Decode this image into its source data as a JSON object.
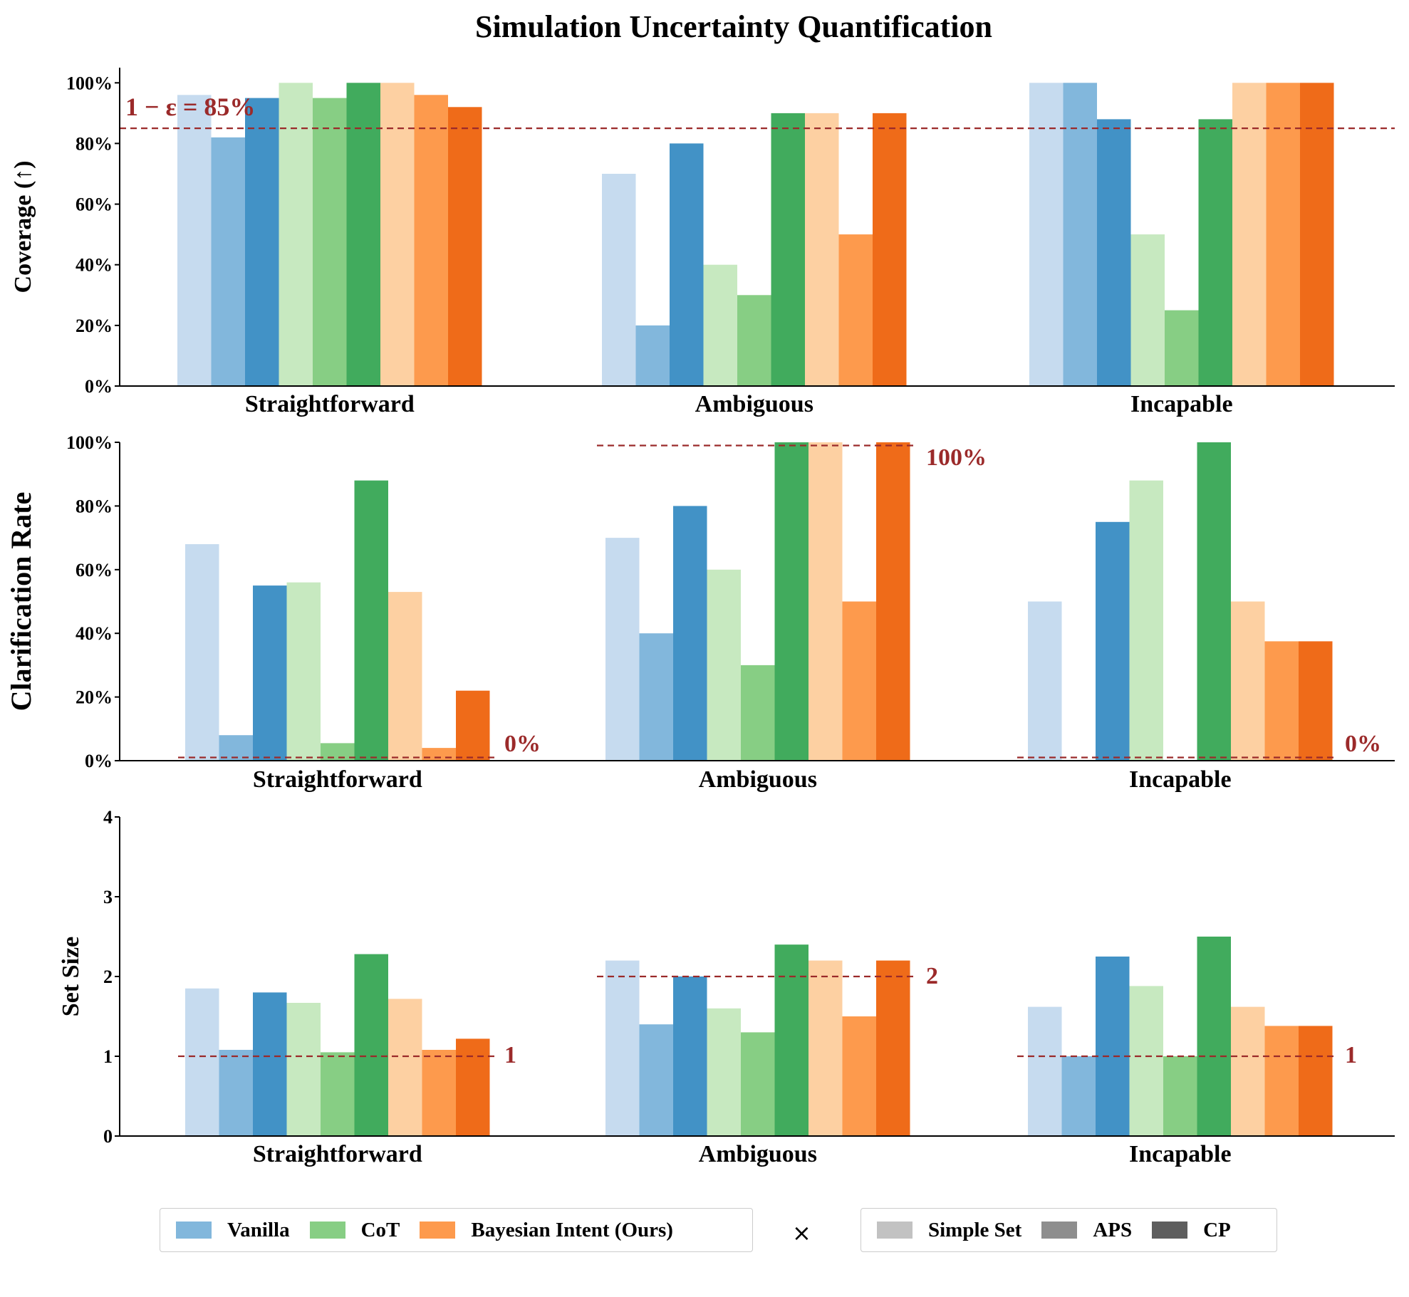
{
  "chart_data": {
    "title": "Simulation Uncertainty Quantification",
    "categories": [
      "Straightforward",
      "Ambiguous",
      "Incapable"
    ],
    "methods": [
      "Vanilla",
      "CoT",
      "Bayesian Intent (Ours)"
    ],
    "variants": [
      "Simple Set",
      "APS",
      "CP"
    ],
    "bar_order": [
      "Vanilla Simple Set",
      "Vanilla APS",
      "Vanilla CP",
      "CoT Simple Set",
      "CoT APS",
      "CoT CP",
      "Bayesian Simple Set",
      "Bayesian APS",
      "Bayesian CP"
    ],
    "colors": {
      "Vanilla": [
        "#c6dbef",
        "#82b7dc",
        "#4292c6"
      ],
      "CoT": [
        "#c7e9c0",
        "#87ce84",
        "#41ab5d"
      ],
      "Bayesian Intent (Ours)": [
        "#fdd0a2",
        "#fd9a4d",
        "#ef6b19"
      ],
      "reference": "#9b2a2a",
      "legend_methods": [
        "#82b7dc",
        "#87ce84",
        "#fd9a4d"
      ],
      "legend_variants": [
        "#c2c2c2",
        "#8e8e8e",
        "#5e5e5e"
      ]
    },
    "panels": [
      {
        "type": "bar",
        "ylabel": "Coverage (↑)",
        "ylim": [
          0,
          105
        ],
        "yticks": [
          0,
          20,
          40,
          60,
          80,
          100
        ],
        "ytick_labels": [
          "0%",
          "20%",
          "40%",
          "60%",
          "80%",
          "100%"
        ],
        "series": [
          {
            "category": "Straightforward",
            "values": [
              96,
              82,
              95,
              100,
              95,
              100,
              100,
              96,
              92
            ]
          },
          {
            "category": "Ambiguous",
            "values": [
              70,
              20,
              80,
              40,
              30,
              90,
              90,
              50,
              90
            ]
          },
          {
            "category": "Incapable",
            "values": [
              100,
              100,
              88,
              50,
              25,
              88,
              100,
              100,
              100
            ]
          }
        ],
        "reference_lines": [
          {
            "scope": "all",
            "value": 85,
            "label": "1 − ε = 85%"
          }
        ]
      },
      {
        "type": "bar",
        "ylabel": "Clarification Rate",
        "ylim": [
          0,
          100
        ],
        "yticks": [
          0,
          20,
          40,
          60,
          80,
          100
        ],
        "ytick_labels": [
          "0%",
          "20%",
          "40%",
          "60%",
          "80%",
          "100%"
        ],
        "series": [
          {
            "category": "Straightforward",
            "values": [
              68,
              8,
              55,
              56,
              5.5,
              88,
              53,
              4,
              22
            ]
          },
          {
            "category": "Ambiguous",
            "values": [
              70,
              40,
              80,
              60,
              30,
              100,
              100,
              50,
              100
            ]
          },
          {
            "category": "Incapable",
            "values": [
              50,
              0,
              75,
              88,
              0,
              100,
              50,
              37.5,
              37.5
            ]
          }
        ],
        "reference_lines": [
          {
            "scope": "Straightforward",
            "value": 1,
            "label": "0%"
          },
          {
            "scope": "Ambiguous",
            "value": 99,
            "label": "100%"
          },
          {
            "scope": "Incapable",
            "value": 1,
            "label": "0%"
          }
        ]
      },
      {
        "type": "bar",
        "ylabel": "Set Size",
        "ylim": [
          0,
          4
        ],
        "yticks": [
          0,
          1,
          2,
          3,
          4
        ],
        "ytick_labels": [
          "0",
          "1",
          "2",
          "3",
          "4"
        ],
        "series": [
          {
            "category": "Straightforward",
            "values": [
              1.85,
              1.08,
              1.8,
              1.67,
              1.05,
              2.28,
              1.72,
              1.08,
              1.22
            ]
          },
          {
            "category": "Ambiguous",
            "values": [
              2.2,
              1.4,
              2.0,
              1.6,
              1.3,
              2.4,
              2.2,
              1.5,
              2.2
            ]
          },
          {
            "category": "Incapable",
            "values": [
              1.62,
              1.0,
              2.25,
              1.88,
              1.0,
              2.5,
              1.62,
              1.38,
              1.38
            ]
          }
        ],
        "reference_lines": [
          {
            "scope": "Straightforward",
            "value": 1,
            "label": "1"
          },
          {
            "scope": "Ambiguous",
            "value": 2,
            "label": "2"
          },
          {
            "scope": "Incapable",
            "value": 1,
            "label": "1"
          }
        ]
      }
    ],
    "legend": {
      "methods": [
        "Vanilla",
        "CoT",
        "Bayesian Intent (Ours)"
      ],
      "separator": "×",
      "variants": [
        "Simple Set",
        "APS",
        "CP"
      ]
    }
  }
}
